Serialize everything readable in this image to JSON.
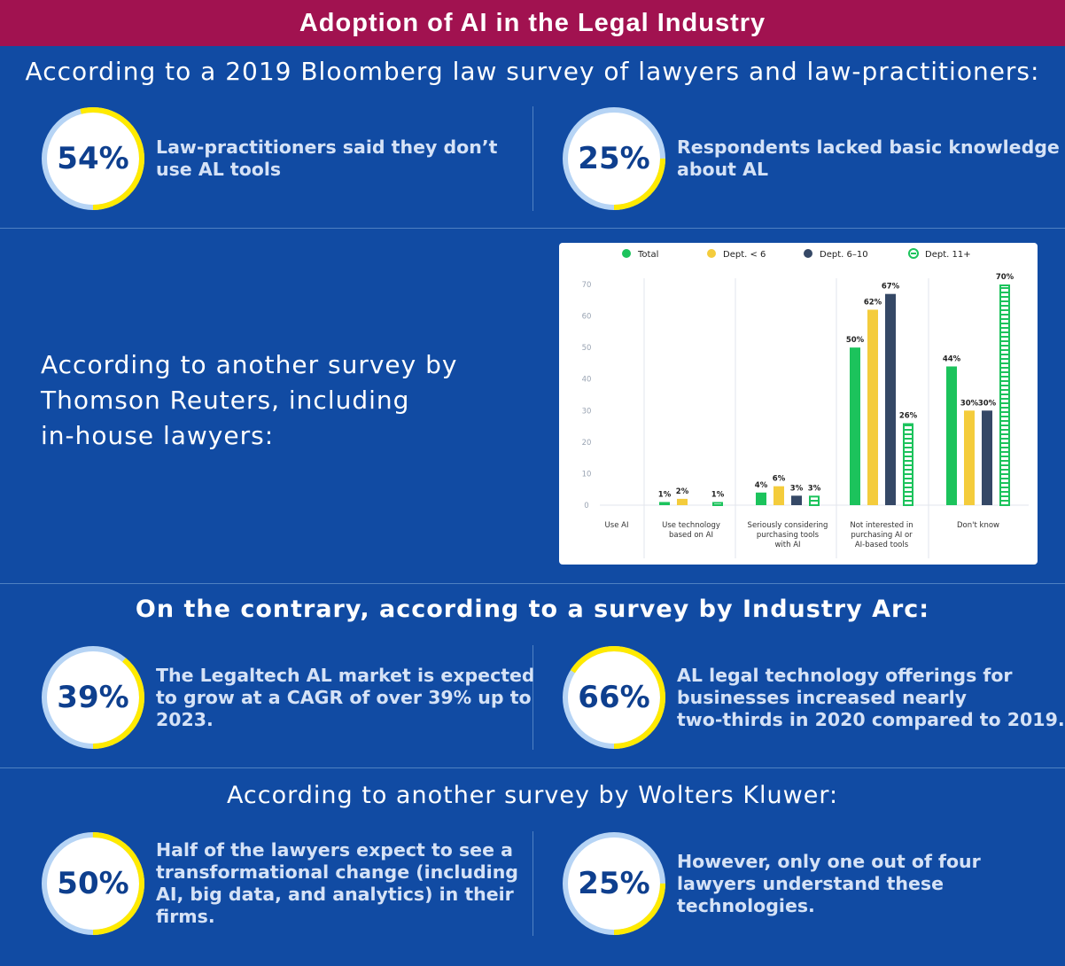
{
  "header": {
    "title": "Adoption of AI in the Legal Industry"
  },
  "bloomberg": {
    "heading": "According to a 2019 Bloomberg law survey of lawyers and law-practitioners:",
    "stats": [
      {
        "value": "54%",
        "fraction": 0.54,
        "text": "Law-practitioners said they don’t\nuse AL tools"
      },
      {
        "value": "25%",
        "fraction": 0.25,
        "text": "Respondents lacked basic knowledge\nabout AL"
      }
    ]
  },
  "thomson": {
    "text": "According to another survey by\nThomson Reuters, including\nin-house lawyers:"
  },
  "chart_data": {
    "type": "bar",
    "categories": [
      "Use AI",
      "Use technology based on AI",
      "Seriously considering purchasing tools with AI",
      "Not interested in purchasing AI or AI-based tools",
      "Don't know"
    ],
    "category_lines": [
      [
        "Use AI"
      ],
      [
        "Use technology",
        "based on AI"
      ],
      [
        "Seriously considering",
        "purchasing tools",
        "with AI"
      ],
      [
        "Not interested in",
        "purchasing AI or",
        "AI-based tools"
      ],
      [
        "Don't know"
      ]
    ],
    "series": [
      {
        "name": "Total",
        "color": "#1cc35c",
        "style": "solid",
        "values": [
          null,
          1,
          4,
          50,
          44
        ],
        "labels": [
          "",
          "1%",
          "4%",
          "50%",
          "44%"
        ]
      },
      {
        "name": "Dept. < 6",
        "color": "#f4cc3c",
        "style": "solid",
        "values": [
          null,
          2,
          6,
          62,
          30
        ],
        "labels": [
          "",
          "2%",
          "6%",
          "62%",
          "30%"
        ]
      },
      {
        "name": "Dept. 6–10",
        "color": "#354866",
        "style": "solid",
        "values": [
          null,
          null,
          3,
          67,
          30
        ],
        "labels": [
          "",
          "",
          "3%",
          "67%",
          "30%"
        ]
      },
      {
        "name": "Dept. 11+",
        "color": "#1cc35c",
        "style": "striped",
        "values": [
          null,
          1,
          3,
          26,
          70
        ],
        "labels": [
          "",
          "1%",
          "3%",
          "26%",
          "70%"
        ]
      }
    ],
    "yticks": [
      "0",
      "10",
      "20",
      "30",
      "40",
      "50",
      "60",
      "70"
    ],
    "ylim": [
      0,
      70
    ],
    "legend_position": "top",
    "grid": false
  },
  "industry_arc": {
    "heading": "On the contrary, according to a survey by Industry Arc:",
    "stats": [
      {
        "value": "39%",
        "fraction": 0.39,
        "text": "The Legaltech AL market is expected\nto grow at a CAGR of over 39% up to\n2023."
      },
      {
        "value": "66%",
        "fraction": 0.66,
        "text": "AL  legal technology offerings for\nbusinesses increased nearly\ntwo-thirds in 2020 compared to 2019."
      }
    ]
  },
  "wolters": {
    "heading": "According to another survey by Wolters Kluwer:",
    "stats": [
      {
        "value": "50%",
        "fraction": 0.5,
        "text": "Half of the lawyers expect to see a\ntransformational change (including\nAI, big data, and analytics) in their\nfirms."
      },
      {
        "value": "25%",
        "fraction": 0.25,
        "text": "However, only one out of four\nlawyers understand these\ntechnologies."
      }
    ]
  },
  "colors": {
    "header_bg": "#a11250",
    "page_bg": "#114ba3",
    "ring_track": "#b6d4f5",
    "ring_progress": "#ffea00",
    "stat_value": "#0e3f8e"
  }
}
